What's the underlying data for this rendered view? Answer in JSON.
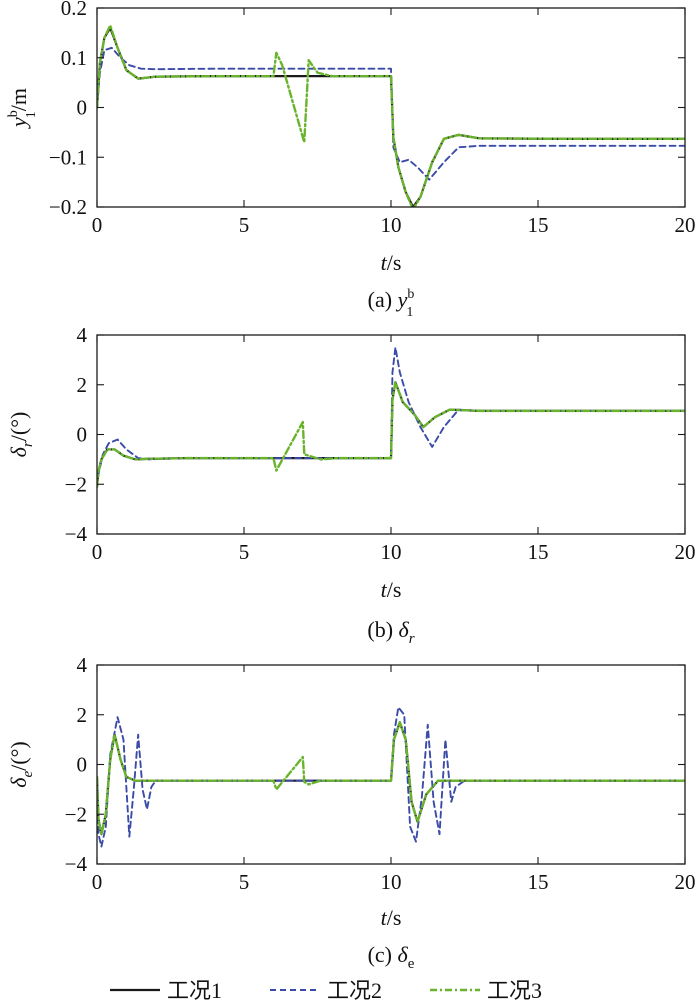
{
  "legend": [
    {
      "name": "工况1",
      "color": "#1a1a1a",
      "dash": "solid"
    },
    {
      "name": "工况2",
      "color": "#3b4ba8",
      "dash": "dashed"
    },
    {
      "name": "工况3",
      "color": "#6ab42d",
      "dash": "dashdot"
    }
  ],
  "chart_data": [
    {
      "type": "line",
      "caption": {
        "prefix": "(a) ",
        "main": "y",
        "sup": "b",
        "sub": "1"
      },
      "xlabel": {
        "var": "t",
        "unit": "/s"
      },
      "ylabel": {
        "var": "y",
        "sup": "b",
        "sub": "1",
        "unit": "/m"
      },
      "xlim": [
        0,
        20
      ],
      "ylim": [
        -0.2,
        0.2
      ],
      "xticks": [
        0,
        5,
        10,
        15,
        20
      ],
      "yticks": [
        -0.2,
        -0.1,
        0,
        0.1,
        0.2
      ],
      "yticklabels": [
        "−0.2",
        "−0.1",
        "0",
        "0.1",
        "0.2"
      ],
      "series": [
        {
          "name": "工况1",
          "x": [
            0,
            0.1,
            0.25,
            0.45,
            0.7,
            1.0,
            1.4,
            2.0,
            4.0,
            6.0,
            8.0,
            10.0,
            10.08,
            10.25,
            10.5,
            10.75,
            11.0,
            11.4,
            11.8,
            12.3,
            13.0,
            16.0,
            20.0
          ],
          "y": [
            0,
            0.09,
            0.14,
            0.16,
            0.12,
            0.075,
            0.058,
            0.062,
            0.063,
            0.063,
            0.063,
            0.063,
            -0.06,
            -0.12,
            -0.17,
            -0.2,
            -0.18,
            -0.11,
            -0.063,
            -0.055,
            -0.062,
            -0.063,
            -0.063
          ]
        },
        {
          "name": "工况2",
          "x": [
            0,
            0.1,
            0.25,
            0.5,
            0.8,
            1.1,
            1.5,
            2.0,
            4.0,
            6.0,
            8.0,
            10.0,
            10.08,
            10.3,
            10.6,
            10.9,
            11.3,
            11.8,
            12.3,
            13.0,
            16.0,
            20.0
          ],
          "y": [
            0,
            0.07,
            0.115,
            0.12,
            0.1,
            0.085,
            0.078,
            0.077,
            0.078,
            0.078,
            0.078,
            0.078,
            -0.08,
            -0.11,
            -0.105,
            -0.12,
            -0.145,
            -0.11,
            -0.08,
            -0.077,
            -0.077,
            -0.077
          ]
        },
        {
          "name": "工况3",
          "x": [
            0,
            0.1,
            0.25,
            0.45,
            0.7,
            1.0,
            1.4,
            2.0,
            4.0,
            6.0,
            6.1,
            6.3,
            7.05,
            7.2,
            7.5,
            8.0,
            8.5,
            10.0,
            10.08,
            10.25,
            10.5,
            10.75,
            11.0,
            11.4,
            11.8,
            12.3,
            13.0,
            16.0,
            20.0
          ],
          "y": [
            0,
            0.09,
            0.14,
            0.165,
            0.12,
            0.075,
            0.058,
            0.062,
            0.063,
            0.063,
            0.11,
            0.085,
            -0.07,
            0.095,
            0.07,
            0.063,
            0.063,
            0.063,
            -0.06,
            -0.12,
            -0.17,
            -0.205,
            -0.18,
            -0.11,
            -0.063,
            -0.055,
            -0.062,
            -0.063,
            -0.063
          ]
        }
      ]
    },
    {
      "type": "line",
      "caption": {
        "prefix": "(b) ",
        "main": "δ",
        "sup": "",
        "sub": "r"
      },
      "xlabel": {
        "var": "t",
        "unit": "/s"
      },
      "ylabel": {
        "var": "δ",
        "sup": "",
        "sub": "r",
        "unit": "/(°)"
      },
      "xlim": [
        0,
        20
      ],
      "ylim": [
        -4,
        4
      ],
      "xticks": [
        0,
        5,
        10,
        15,
        20
      ],
      "yticks": [
        -4,
        -2,
        0,
        2,
        4
      ],
      "yticklabels": [
        "−4",
        "−2",
        "0",
        "2",
        "4"
      ],
      "series": [
        {
          "name": "工况1",
          "x": [
            0,
            0.05,
            0.15,
            0.35,
            0.6,
            0.9,
            1.3,
            1.7,
            3.0,
            6.0,
            8.0,
            10.0,
            10.05,
            10.15,
            10.4,
            10.8,
            11.1,
            11.5,
            12.0,
            13.0,
            20.0
          ],
          "y": [
            -2.1,
            -1.5,
            -1.0,
            -0.6,
            -0.6,
            -0.85,
            -1.0,
            -0.98,
            -0.95,
            -0.95,
            -0.95,
            -0.95,
            1.4,
            2.1,
            1.3,
            0.8,
            0.3,
            0.7,
            1.0,
            0.95,
            0.95
          ]
        },
        {
          "name": "工况2",
          "x": [
            0,
            0.05,
            0.2,
            0.4,
            0.7,
            1.0,
            1.4,
            1.8,
            3.0,
            6.0,
            8.0,
            10.0,
            10.05,
            10.15,
            10.3,
            10.6,
            11.0,
            11.4,
            11.8,
            12.3,
            13.0,
            20.0
          ],
          "y": [
            -2.1,
            -1.6,
            -0.8,
            -0.35,
            -0.2,
            -0.6,
            -0.95,
            -1.0,
            -0.95,
            -0.95,
            -0.95,
            -0.95,
            2.5,
            3.5,
            2.5,
            1.3,
            0.3,
            -0.5,
            0.3,
            1.0,
            0.95,
            0.95
          ]
        },
        {
          "name": "工况3",
          "x": [
            0,
            0.05,
            0.15,
            0.35,
            0.6,
            0.9,
            1.3,
            1.7,
            3.0,
            6.0,
            6.1,
            7.0,
            7.05,
            7.2,
            7.6,
            8.2,
            10.0,
            10.05,
            10.15,
            10.4,
            10.8,
            11.1,
            11.5,
            12.0,
            13.0,
            20.0
          ],
          "y": [
            -2.1,
            -1.5,
            -1.0,
            -0.6,
            -0.6,
            -0.85,
            -1.0,
            -0.98,
            -0.95,
            -0.95,
            -1.45,
            0.5,
            -0.8,
            -0.85,
            -1.0,
            -0.95,
            -0.95,
            1.4,
            2.1,
            1.3,
            0.8,
            0.3,
            0.7,
            1.0,
            0.95,
            0.95
          ]
        }
      ]
    },
    {
      "type": "line",
      "caption": {
        "prefix": "(c) ",
        "main": "δ",
        "sup": "",
        "sub": "e"
      },
      "xlabel": {
        "var": "t",
        "unit": "/s"
      },
      "ylabel": {
        "var": "δ",
        "sup": "",
        "sub": "e",
        "unit": "/(°)"
      },
      "xlim": [
        0,
        20
      ],
      "ylim": [
        -4,
        4
      ],
      "xticks": [
        0,
        5,
        10,
        15,
        20
      ],
      "yticks": [
        -4,
        -2,
        0,
        2,
        4
      ],
      "yticklabels": [
        "−4",
        "−2",
        "0",
        "2",
        "4"
      ],
      "series": [
        {
          "name": "工况1",
          "x": [
            0,
            0.05,
            0.15,
            0.3,
            0.45,
            0.6,
            0.8,
            1.0,
            1.3,
            2.0,
            5.0,
            10.0,
            10.1,
            10.3,
            10.5,
            10.7,
            10.9,
            11.2,
            11.6,
            12.0,
            20.0
          ],
          "y": [
            -0.5,
            -2.2,
            -2.8,
            -2.0,
            0.2,
            1.2,
            0.2,
            -0.5,
            -0.65,
            -0.65,
            -0.65,
            -0.65,
            1.0,
            1.7,
            1.0,
            -1.5,
            -2.3,
            -1.2,
            -0.65,
            -0.65,
            -0.65
          ]
        },
        {
          "name": "工况2",
          "x": [
            0,
            0.05,
            0.15,
            0.3,
            0.45,
            0.7,
            0.9,
            1.1,
            1.25,
            1.4,
            1.55,
            1.7,
            1.85,
            2.0,
            5.0,
            10.0,
            10.1,
            10.25,
            10.45,
            10.65,
            10.85,
            11.05,
            11.25,
            11.45,
            11.65,
            11.85,
            12.05,
            12.2,
            12.5,
            20.0
          ],
          "y": [
            -0.5,
            -2.8,
            -3.3,
            -2.5,
            0.4,
            1.9,
            1.0,
            -2.9,
            -1.0,
            1.2,
            -1.0,
            -1.8,
            -0.9,
            -0.65,
            -0.65,
            -0.65,
            1.2,
            2.3,
            2.0,
            -2.5,
            -3.1,
            -1.3,
            1.6,
            -1.5,
            -2.8,
            1.0,
            -1.5,
            -0.9,
            -0.65,
            -0.65
          ]
        },
        {
          "name": "工况3",
          "x": [
            0,
            0.05,
            0.15,
            0.3,
            0.45,
            0.6,
            0.8,
            1.0,
            1.3,
            2.0,
            5.0,
            6.0,
            6.1,
            7.0,
            7.05,
            7.2,
            7.6,
            10.0,
            10.1,
            10.3,
            10.5,
            10.7,
            10.9,
            11.2,
            11.6,
            12.0,
            20.0
          ],
          "y": [
            -0.5,
            -2.2,
            -2.8,
            -2.0,
            0.2,
            1.2,
            0.2,
            -0.5,
            -0.65,
            -0.65,
            -0.65,
            -0.65,
            -1.0,
            0.3,
            -0.7,
            -0.8,
            -0.65,
            -0.65,
            1.0,
            1.7,
            1.0,
            -1.5,
            -2.3,
            -1.2,
            -0.65,
            -0.65,
            -0.65
          ]
        }
      ]
    }
  ]
}
